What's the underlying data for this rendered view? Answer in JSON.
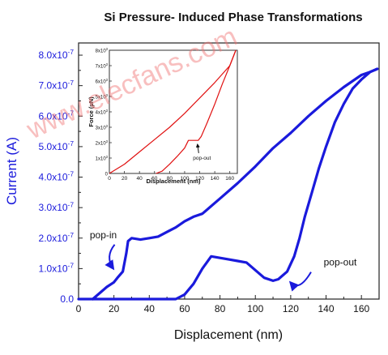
{
  "chart_data": [
    {
      "type": "line",
      "title": "Si Pressure- Induced Phase Transformations",
      "xlabel": "Displacement (nm)",
      "ylabel": "Current (A)",
      "xlim": [
        0,
        170
      ],
      "ylim": [
        0,
        8.4e-07
      ],
      "x_ticks": [
        "0",
        "20",
        "40",
        "60",
        "80",
        "100",
        "120",
        "140",
        "160"
      ],
      "y_ticks": [
        {
          "value": 0,
          "label": "0.0"
        },
        {
          "value": 1e-07,
          "label": "1.0x10",
          "exp": "-7"
        },
        {
          "value": 2e-07,
          "label": "2.0x10",
          "exp": "-7"
        },
        {
          "value": 3e-07,
          "label": "3.0x10",
          "exp": "-7"
        },
        {
          "value": 4e-07,
          "label": "4.0x10",
          "exp": "-7"
        },
        {
          "value": 5e-07,
          "label": "5.0x10",
          "exp": "-7"
        },
        {
          "value": 6e-07,
          "label": "6.0x10",
          "exp": "-7"
        },
        {
          "value": 7e-07,
          "label": "7.0x10",
          "exp": "-7"
        },
        {
          "value": 8e-07,
          "label": "8.0x10",
          "exp": "-7"
        }
      ],
      "color": "#1a1adc",
      "series": [
        {
          "x": [
            8,
            12,
            16,
            20,
            22,
            25,
            27,
            28,
            30,
            35,
            40,
            45,
            50,
            55,
            60,
            65,
            70,
            80,
            90,
            100,
            110,
            120,
            130,
            140,
            150,
            160,
            165,
            169
          ],
          "y": [
            0,
            2e-08,
            4e-08,
            5.5e-08,
            7e-08,
            9e-08,
            1.5e-07,
            1.9e-07,
            2e-07,
            1.95e-07,
            2e-07,
            2.05e-07,
            2.2e-07,
            2.35e-07,
            2.55e-07,
            2.7e-07,
            2.8e-07,
            3.3e-07,
            3.8e-07,
            4.35e-07,
            4.95e-07,
            5.45e-07,
            6e-07,
            6.5e-07,
            6.95e-07,
            7.35e-07,
            7.45e-07,
            7.55e-07
          ]
        },
        {
          "x": [
            0,
            20,
            40,
            55,
            60,
            65,
            70,
            75,
            80,
            85,
            90,
            95,
            100,
            105,
            110,
            113,
            118,
            122,
            125,
            128,
            132,
            136,
            140,
            145,
            150,
            155,
            160,
            165,
            169
          ],
          "y": [
            0,
            0,
            0,
            0,
            1.5e-08,
            5e-08,
            1e-07,
            1.4e-07,
            1.35e-07,
            1.3e-07,
            1.25e-07,
            1.2e-07,
            9.5e-08,
            7e-08,
            6e-08,
            6.5e-08,
            9e-08,
            1.4e-07,
            2e-07,
            2.7e-07,
            3.5e-07,
            4.3e-07,
            5e-07,
            5.8e-07,
            6.4e-07,
            6.9e-07,
            7.2e-07,
            7.45e-07,
            7.55e-07
          ]
        }
      ],
      "annotations": [
        {
          "text": "pop-in",
          "at": [
            14,
            2e-07
          ],
          "arrow_to": [
            21,
            1e-07
          ]
        },
        {
          "text": "pop-out",
          "at": [
            148,
            1.1e-07
          ],
          "arrow_to": [
            118,
            6e-08
          ]
        }
      ]
    },
    {
      "type": "line",
      "xlabel": "Displacement (nm)",
      "ylabel": "Force (µN)",
      "xlim": [
        0,
        170
      ],
      "ylim": [
        0,
        8000
      ],
      "x_ticks": [
        "0",
        "20",
        "40",
        "60",
        "80",
        "100",
        "120",
        "140",
        "160"
      ],
      "y_ticks": [
        {
          "value": 0,
          "label": "0"
        },
        {
          "value": 1000,
          "label": "1x10",
          "exp": "3"
        },
        {
          "value": 2000,
          "label": "2x10",
          "exp": "3"
        },
        {
          "value": 3000,
          "label": "3x10",
          "exp": "3"
        },
        {
          "value": 4000,
          "label": "4x10",
          "exp": "3"
        },
        {
          "value": 5000,
          "label": "5x10",
          "exp": "3"
        },
        {
          "value": 6000,
          "label": "6x10",
          "exp": "3"
        },
        {
          "value": 7000,
          "label": "7x10",
          "exp": "3"
        },
        {
          "value": 8000,
          "label": "8x10",
          "exp": "3"
        }
      ],
      "color": "#e01010",
      "series": [
        {
          "x": [
            0,
            20,
            40,
            60,
            80,
            100,
            120,
            140,
            160,
            168
          ],
          "y": [
            0,
            600,
            1400,
            2200,
            3000,
            3900,
            4900,
            5900,
            7000,
            8000
          ]
        },
        {
          "x": [
            62,
            70,
            80,
            90,
            100,
            105,
            108,
            112,
            118,
            122,
            130,
            140,
            150,
            160,
            168
          ],
          "y": [
            0,
            150,
            600,
            1100,
            1650,
            2150,
            2150,
            2150,
            2150,
            2400,
            3300,
            4500,
            5800,
            7000,
            8000
          ]
        }
      ],
      "annotations": [
        {
          "text": "pop-out",
          "at": [
            123,
            900
          ],
          "arrow_to": [
            116,
            2000
          ]
        }
      ]
    }
  ],
  "watermark": "www.elecfans.com"
}
